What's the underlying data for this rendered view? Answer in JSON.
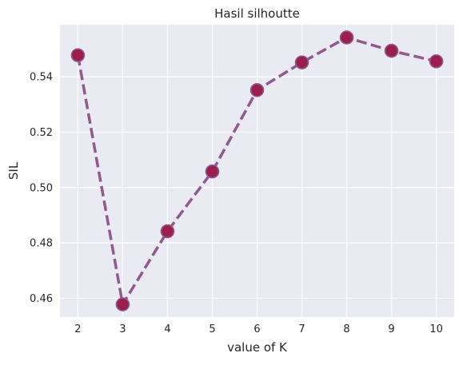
{
  "chart_data": {
    "type": "line",
    "title": "Hasil silhoutte",
    "xlabel": "value of K",
    "ylabel": "SIL",
    "x": [
      2,
      3,
      4,
      5,
      6,
      7,
      8,
      9,
      10
    ],
    "series": [
      {
        "values": [
          0.5478,
          0.4578,
          0.4842,
          0.5058,
          0.5352,
          0.5452,
          0.5542,
          0.5494,
          0.5456
        ],
        "line_color": "#915a8e",
        "marker_color": "#9a1f4c",
        "line_style": "dashed",
        "marker": "circle"
      }
    ],
    "xticks": [
      "2",
      "3",
      "4",
      "5",
      "6",
      "7",
      "8",
      "9",
      "10"
    ],
    "yticks": [
      "0.46",
      "0.48",
      "0.50",
      "0.52",
      "0.54"
    ],
    "ytick_values": [
      0.46,
      0.48,
      0.5,
      0.52,
      0.54
    ],
    "xlim": [
      1.6,
      10.4
    ],
    "ylim": [
      0.4532,
      0.5588
    ],
    "grid": true,
    "background": "#eaeaf2",
    "grid_color": "#ffffff"
  }
}
